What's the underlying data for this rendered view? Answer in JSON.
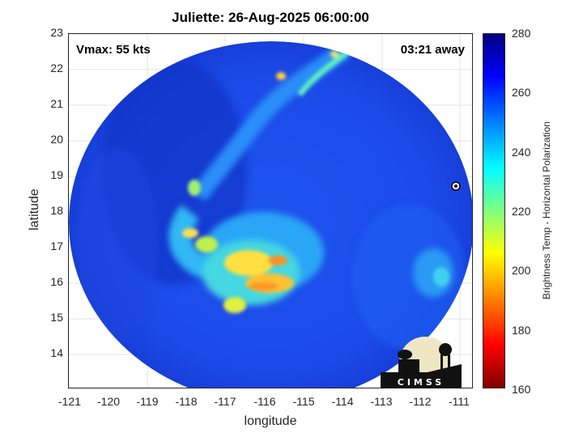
{
  "title": "Juliette: 26-Aug-2025 06:00:00",
  "vmax": "Vmax: 55 kts",
  "away": "03:21 away",
  "xlabel": "longitude",
  "ylabel": "latitude",
  "xticks": [
    "-121",
    "-120",
    "-119",
    "-118",
    "-117",
    "-116",
    "-115",
    "-114",
    "-113",
    "-112",
    "-111"
  ],
  "yticks": [
    "23",
    "22",
    "21",
    "20",
    "19",
    "18",
    "17",
    "16",
    "15",
    "14"
  ],
  "colorbar": {
    "label": "Brightness Temp - Horizontal Polarization",
    "ticks": [
      "280",
      "260",
      "240",
      "220",
      "200",
      "180",
      "160"
    ],
    "range": [
      160,
      280
    ]
  },
  "logo_text": "CIMSS",
  "colors": {
    "background_blue": "#1e50f0",
    "deep_blue": "#1436d2",
    "cyan": "#30d8f0",
    "yellow": "#ffe040",
    "orange": "#ff9020"
  }
}
